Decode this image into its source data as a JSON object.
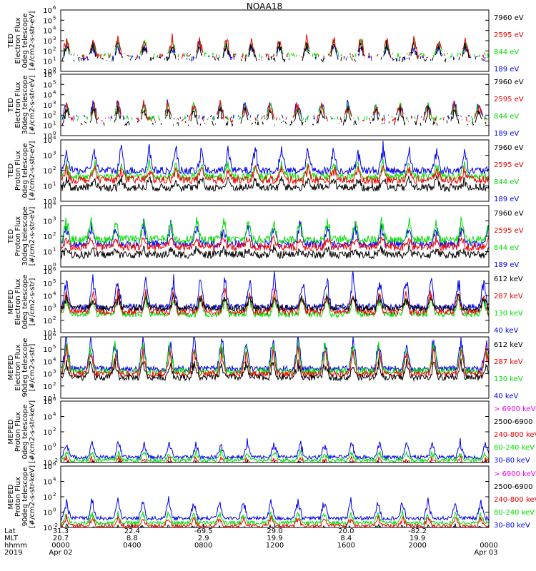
{
  "chart_data": {
    "type": "line",
    "title": "NOAA18",
    "x_ticks": {
      "Lat": [
        "31.3",
        "22.4",
        "-69.5",
        "29.0",
        "20.0",
        "-82.2"
      ],
      "MLT": [
        "20.7",
        "8.8",
        "2.9",
        "19.9",
        "8.4",
        "19.9"
      ],
      "hhmm": [
        "0000",
        "0400",
        "0800",
        "1200",
        "1600",
        "2000",
        "0000"
      ],
      "dates": [
        "Apr 02",
        "Apr 03"
      ]
    },
    "row_labels": {
      "lat": "Lat",
      "mlt": "MLT",
      "hhmm": "hhmm",
      "year": "2019"
    },
    "panels": [
      {
        "ylabel": [
          "TED",
          "Electron Flux",
          "0deg telescope",
          "[#/cm2-s-str-eV]"
        ],
        "ylim": [
          1,
          1000000
        ],
        "scale": "log",
        "yticks": [
          [
            "10",
            "0"
          ],
          [
            "10",
            "1"
          ],
          [
            "10",
            "2"
          ],
          [
            "10",
            "3"
          ],
          [
            "10",
            "4"
          ],
          [
            "10",
            "5"
          ],
          [
            "10",
            "6"
          ]
        ],
        "series": [
          {
            "name": "7960 eV",
            "color": "#000000",
            "base": 1.2,
            "amp": 1.5
          },
          {
            "name": "2595 eV",
            "color": "#ee0000",
            "base": 1.5,
            "amp": 1.8
          },
          {
            "name": "844 eV",
            "color": "#00dd00",
            "base": 1.6,
            "amp": 1.4
          },
          {
            "name": "189 eV",
            "color": "#0000ee",
            "base": 1.3,
            "amp": 1.3
          }
        ]
      },
      {
        "ylabel": [
          "TED",
          "Electron Flux",
          "30deg telescope",
          "[#/cm2-s-str-eV]"
        ],
        "ylim": [
          1,
          1000000
        ],
        "scale": "log",
        "yticks": [
          [
            "10",
            "0"
          ],
          [
            "10",
            "1"
          ],
          [
            "10",
            "2"
          ],
          [
            "10",
            "3"
          ],
          [
            "10",
            "4"
          ],
          [
            "10",
            "5"
          ],
          [
            "10",
            "6"
          ]
        ],
        "series": [
          {
            "name": "7960 eV",
            "color": "#000000",
            "base": 1.2,
            "amp": 1.4
          },
          {
            "name": "2595 eV",
            "color": "#ee0000",
            "base": 1.6,
            "amp": 1.6
          },
          {
            "name": "844 eV",
            "color": "#00dd00",
            "base": 1.7,
            "amp": 1.4
          },
          {
            "name": "189 eV",
            "color": "#0000ee",
            "base": 1.8,
            "amp": 1.5
          }
        ]
      },
      {
        "ylabel": [
          "TED",
          "Proton Flux",
          "0deg telescope",
          "[#/cm2-s-str-eV]"
        ],
        "ylim": [
          1,
          10000
        ],
        "scale": "log",
        "yticks": [
          [
            "10",
            "0"
          ],
          [
            "10",
            "1"
          ],
          [
            "10",
            "2"
          ],
          [
            "10",
            "3"
          ],
          [
            "10",
            "4"
          ]
        ],
        "series": [
          {
            "name": "7960 eV",
            "color": "#000000",
            "base": 0.9,
            "amp": 0.6
          },
          {
            "name": "2595 eV",
            "color": "#ee0000",
            "base": 1.4,
            "amp": 0.8
          },
          {
            "name": "844 eV",
            "color": "#00dd00",
            "base": 1.6,
            "amp": 0.9
          },
          {
            "name": "189 eV",
            "color": "#0000ee",
            "base": 2.0,
            "amp": 1.5
          }
        ]
      },
      {
        "ylabel": [
          "TED",
          "Proton Flux",
          "30deg telescope",
          "[#/cm2-s-str-eV]"
        ],
        "ylim": [
          1,
          10000
        ],
        "scale": "log",
        "yticks": [
          [
            "10",
            "0"
          ],
          [
            "10",
            "1"
          ],
          [
            "10",
            "2"
          ],
          [
            "10",
            "3"
          ],
          [
            "10",
            "4"
          ]
        ],
        "series": [
          {
            "name": "7960 eV",
            "color": "#000000",
            "base": 0.8,
            "amp": 0.4
          },
          {
            "name": "2595 eV",
            "color": "#ee0000",
            "base": 1.3,
            "amp": 0.6
          },
          {
            "name": "844 eV",
            "color": "#00dd00",
            "base": 1.8,
            "amp": 1.3
          },
          {
            "name": "189 eV",
            "color": "#0000ee",
            "base": 1.5,
            "amp": 1.3
          }
        ]
      },
      {
        "ylabel": [
          "MEPED",
          "Electron Flux",
          "0deg telescope",
          "[#/cm2-s-str]"
        ],
        "ylim": [
          10,
          1000000
        ],
        "scale": "log",
        "yticks": [
          [
            "10",
            "1"
          ],
          [
            "10",
            "2"
          ],
          [
            "10",
            "3"
          ],
          [
            "10",
            "4"
          ],
          [
            "10",
            "5"
          ],
          [
            "10",
            "6"
          ]
        ],
        "series": [
          {
            "name": "612 keV",
            "color": "#000000",
            "base": 2.0,
            "amp": 0.9
          },
          {
            "name": "287 keV",
            "color": "#ee0000",
            "base": 1.7,
            "amp": 1.6
          },
          {
            "name": "130 keV",
            "color": "#00dd00",
            "base": 1.5,
            "amp": 1.5
          },
          {
            "name": "40 keV",
            "color": "#0000ee",
            "base": 2.1,
            "amp": 2.5
          }
        ]
      },
      {
        "ylabel": [
          "MEPED",
          "Electron Flux",
          "90deg telescope",
          "[#/cm2-s-str]"
        ],
        "ylim": [
          10,
          1000000
        ],
        "scale": "log",
        "yticks": [
          [
            "10",
            "1"
          ],
          [
            "10",
            "2"
          ],
          [
            "10",
            "3"
          ],
          [
            "10",
            "4"
          ],
          [
            "10",
            "5"
          ],
          [
            "10",
            "6"
          ]
        ],
        "series": [
          {
            "name": "612 keV",
            "color": "#000000",
            "base": 1.7,
            "amp": 1.2
          },
          {
            "name": "287 keV",
            "color": "#ee0000",
            "base": 2.0,
            "amp": 2.0
          },
          {
            "name": "130 keV",
            "color": "#00dd00",
            "base": 2.2,
            "amp": 2.2
          },
          {
            "name": "40 keV",
            "color": "#0000ee",
            "base": 2.4,
            "amp": 2.6
          }
        ]
      },
      {
        "ylabel": [
          "MEPED",
          "Proton Flux",
          "0deg telescope",
          "[#/cm2-s-str-keV]"
        ],
        "ylim": [
          0.01,
          1000000
        ],
        "scale": "log",
        "yticks": [
          [
            "10",
            "-2"
          ],
          [
            "10",
            "0"
          ],
          [
            "10",
            "2"
          ],
          [
            "10",
            "4"
          ],
          [
            "10",
            "6"
          ]
        ],
        "series": [
          {
            "name": "> 6900 keV",
            "color": "#ee00ee",
            "base": -0.8,
            "amp": 0.5
          },
          {
            "name": "2500-6900",
            "color": "#000000",
            "base": -0.5,
            "amp": 0.6
          },
          {
            "name": "240-800 keV",
            "color": "#ee0000",
            "base": -0.3,
            "amp": 1.0
          },
          {
            "name": "80-240 keV",
            "color": "#00dd00",
            "base": 0.3,
            "amp": 1.1
          },
          {
            "name": "30-80 keV",
            "color": "#0000ee",
            "base": 0.7,
            "amp": 2.0
          }
        ]
      },
      {
        "ylabel": [
          "MEPED",
          "Proton Flux",
          "90deg telescope",
          "[#/cm2-s-str-keV]"
        ],
        "ylim": [
          0.01,
          1000000
        ],
        "scale": "log",
        "yticks": [
          [
            "10",
            "-2"
          ],
          [
            "10",
            "0"
          ],
          [
            "10",
            "2"
          ],
          [
            "10",
            "4"
          ],
          [
            "10",
            "6"
          ]
        ],
        "series": [
          {
            "name": "> 6900 keV",
            "color": "#ee00ee",
            "base": -0.8,
            "amp": 0.5
          },
          {
            "name": "2500-6900",
            "color": "#000000",
            "base": -0.4,
            "amp": 0.6
          },
          {
            "name": "240-800 keV",
            "color": "#ee0000",
            "base": 0.2,
            "amp": 1.1
          },
          {
            "name": "80-240 keV",
            "color": "#00dd00",
            "base": 0.6,
            "amp": 1.3
          },
          {
            "name": "30-80 keV",
            "color": "#0000ee",
            "base": 1.2,
            "amp": 2.4
          }
        ]
      }
    ]
  }
}
